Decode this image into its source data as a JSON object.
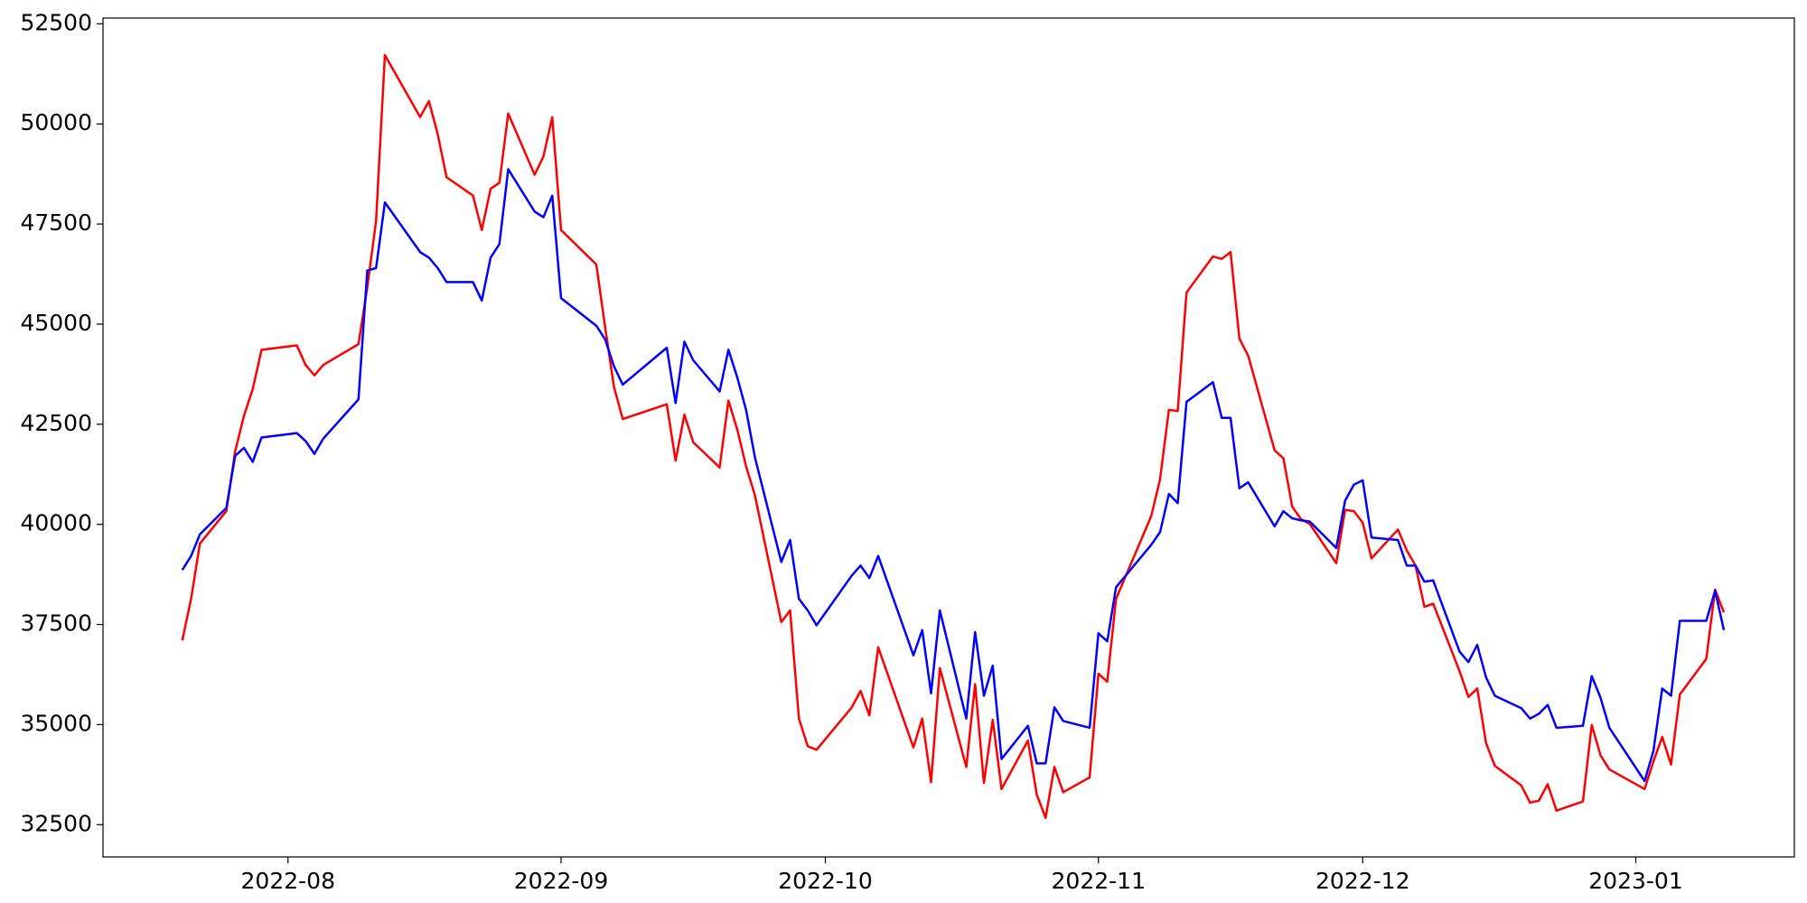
{
  "chart_data": {
    "type": "line",
    "x": [
      "2022-07-20",
      "2022-07-21",
      "2022-07-22",
      "2022-07-25",
      "2022-07-26",
      "2022-07-27",
      "2022-07-28",
      "2022-07-29",
      "2022-08-02",
      "2022-08-03",
      "2022-08-04",
      "2022-08-05",
      "2022-08-09",
      "2022-08-10",
      "2022-08-11",
      "2022-08-12",
      "2022-08-16",
      "2022-08-17",
      "2022-08-18",
      "2022-08-19",
      "2022-08-22",
      "2022-08-23",
      "2022-08-24",
      "2022-08-25",
      "2022-08-26",
      "2022-08-29",
      "2022-08-30",
      "2022-08-31",
      "2022-09-01",
      "2022-09-05",
      "2022-09-06",
      "2022-09-07",
      "2022-09-08",
      "2022-09-13",
      "2022-09-14",
      "2022-09-15",
      "2022-09-16",
      "2022-09-19",
      "2022-09-20",
      "2022-09-21",
      "2022-09-22",
      "2022-09-23",
      "2022-09-26",
      "2022-09-27",
      "2022-09-28",
      "2022-09-29",
      "2022-09-30",
      "2022-10-04",
      "2022-10-05",
      "2022-10-06",
      "2022-10-07",
      "2022-10-11",
      "2022-10-12",
      "2022-10-13",
      "2022-10-14",
      "2022-10-17",
      "2022-10-18",
      "2022-10-19",
      "2022-10-20",
      "2022-10-21",
      "2022-10-24",
      "2022-10-25",
      "2022-10-26",
      "2022-10-27",
      "2022-10-28",
      "2022-10-31",
      "2022-11-01",
      "2022-11-02",
      "2022-11-03",
      "2022-11-07",
      "2022-11-08",
      "2022-11-09",
      "2022-11-10",
      "2022-11-11",
      "2022-11-14",
      "2022-11-15",
      "2022-11-16",
      "2022-11-17",
      "2022-11-18",
      "2022-11-21",
      "2022-11-22",
      "2022-11-23",
      "2022-11-24",
      "2022-11-25",
      "2022-11-28",
      "2022-11-29",
      "2022-11-30",
      "2022-12-01",
      "2022-12-02",
      "2022-12-05",
      "2022-12-06",
      "2022-12-07",
      "2022-12-08",
      "2022-12-09",
      "2022-12-12",
      "2022-12-13",
      "2022-12-14",
      "2022-12-15",
      "2022-12-16",
      "2022-12-19",
      "2022-12-20",
      "2022-12-21",
      "2022-12-22",
      "2022-12-23",
      "2022-12-26",
      "2022-12-27",
      "2022-12-28",
      "2022-12-29",
      "2023-01-02",
      "2023-01-03",
      "2023-01-04",
      "2023-01-05",
      "2023-01-06",
      "2023-01-09",
      "2023-01-10",
      "2023-01-11"
    ],
    "series": [
      {
        "color": "#ff0000",
        "values": [
          37100,
          38140,
          39520,
          40330,
          41820,
          42710,
          43380,
          44360,
          44470,
          43980,
          43720,
          43980,
          44500,
          45910,
          47580,
          51720,
          50170,
          50570,
          49740,
          48670,
          48210,
          47350,
          48380,
          48530,
          50260,
          48730,
          49190,
          50170,
          47350,
          46490,
          44930,
          43440,
          42630,
          43000,
          41590,
          42740,
          42050,
          41420,
          43090,
          42370,
          41450,
          40730,
          37560,
          37850,
          35150,
          34460,
          34370,
          35430,
          35840,
          35230,
          36930,
          34430,
          35150,
          33560,
          36410,
          33940,
          36010,
          33540,
          35120,
          33390,
          34600,
          33250,
          32670,
          33940,
          33310,
          33680,
          36270,
          36070,
          38140,
          40210,
          41130,
          42860,
          42830,
          45790,
          46690,
          46630,
          46800,
          44640,
          44210,
          41850,
          41650,
          40440,
          40130,
          40010,
          39030,
          40360,
          40330,
          40040,
          39150,
          39870,
          39350,
          38970,
          37940,
          38020,
          36330,
          35690,
          35900,
          34540,
          33970,
          33480,
          33050,
          33100,
          33510,
          32850,
          33080,
          34990,
          34230,
          33880,
          33390,
          34080,
          34690,
          34000,
          35750,
          36640,
          38370,
          37800
        ]
      },
      {
        "color": "#0000ff",
        "values": [
          38860,
          39210,
          39750,
          40410,
          41710,
          41910,
          41560,
          42170,
          42280,
          42080,
          41760,
          42140,
          43120,
          46340,
          46400,
          48040,
          46800,
          46660,
          46400,
          46050,
          46050,
          45590,
          46660,
          47000,
          48870,
          47810,
          47670,
          48210,
          45650,
          44960,
          44620,
          43950,
          43490,
          44410,
          43030,
          44560,
          44100,
          43320,
          44360,
          43670,
          42860,
          41680,
          39060,
          39610,
          38140,
          37850,
          37480,
          38720,
          38970,
          38660,
          39210,
          36730,
          37360,
          35780,
          37850,
          35150,
          37310,
          35720,
          36470,
          34140,
          34970,
          34030,
          34030,
          35430,
          35090,
          34920,
          37280,
          37080,
          38430,
          39490,
          39810,
          40760,
          40530,
          43060,
          43550,
          42660,
          42660,
          40900,
          41050,
          39950,
          40330,
          40150,
          40100,
          40070,
          39410,
          40590,
          40990,
          41100,
          39670,
          39610,
          38970,
          38970,
          38570,
          38600,
          36820,
          36560,
          36990,
          36180,
          35720,
          35410,
          35150,
          35270,
          35490,
          34920,
          34970,
          36210,
          35670,
          34920,
          33590,
          34340,
          35900,
          35720,
          37590,
          37590,
          38340,
          37360
        ]
      }
    ],
    "xlim": [
      "2022-07-11",
      "2023-01-19"
    ],
    "xticks": [
      {
        "value": "2022-08-01",
        "label": "2022-08"
      },
      {
        "value": "2022-09-01",
        "label": "2022-09"
      },
      {
        "value": "2022-10-01",
        "label": "2022-10"
      },
      {
        "value": "2022-11-01",
        "label": "2022-11"
      },
      {
        "value": "2022-12-01",
        "label": "2022-12"
      },
      {
        "value": "2023-01-01",
        "label": "2023-01"
      }
    ],
    "ylim": [
      31694,
      52644
    ],
    "yticks": [
      32500,
      35000,
      37500,
      40000,
      42500,
      45000,
      47500,
      50000,
      52500
    ],
    "grid": false
  }
}
